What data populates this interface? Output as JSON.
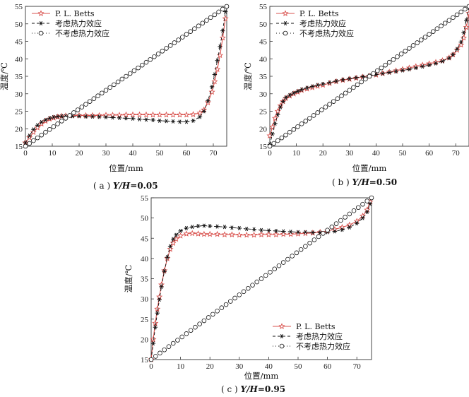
{
  "chart_data": [
    {
      "type": "line",
      "caption": "( a ) Y/H=0.05",
      "caption_prefix": "( a ) ",
      "caption_var": "Y/H",
      "caption_value": "=0.05",
      "xlabel": "位置/mm",
      "ylabel": "温度/℃",
      "xlim": [
        0,
        75
      ],
      "ylim": [
        15,
        55
      ],
      "xticks": [
        0,
        10,
        20,
        30,
        40,
        50,
        60,
        70
      ],
      "yticks": [
        15,
        20,
        25,
        30,
        35,
        40,
        45,
        50,
        55
      ],
      "legend_position": "top-left",
      "series": [
        {
          "name": "P. L. Betts",
          "marker": "star",
          "color": "#d9534f",
          "x": [
            0,
            1.5,
            3,
            4.5,
            6,
            7.5,
            9,
            10.5,
            12,
            13.5,
            15,
            17.5,
            20,
            22.5,
            25,
            27.5,
            30,
            32.5,
            35,
            37.5,
            40,
            42.5,
            45,
            47.5,
            50,
            52.5,
            55,
            57.5,
            60,
            62.5,
            65,
            66.5,
            68,
            69.5,
            70.5,
            71.5,
            72.5,
            73.5,
            74.5
          ],
          "y": [
            16,
            17.5,
            19,
            20.3,
            21.4,
            22.2,
            22.8,
            23.1,
            23.4,
            23.6,
            23.7,
            23.8,
            23.8,
            23.8,
            23.8,
            23.8,
            23.9,
            23.9,
            23.9,
            24,
            24,
            24,
            24,
            24,
            24,
            24,
            24,
            24,
            24,
            24.1,
            24.5,
            25.4,
            27.5,
            30.5,
            33.5,
            37,
            41,
            46,
            51.5
          ]
        },
        {
          "name": "考虑热力效应",
          "marker": "asterisk",
          "color": "#111111",
          "x": [
            0,
            1.5,
            3,
            4.5,
            6,
            7.5,
            9,
            10.5,
            12,
            13.5,
            15,
            17.5,
            20,
            22.5,
            25,
            27.5,
            30,
            32.5,
            35,
            37.5,
            40,
            42.5,
            45,
            47.5,
            50,
            52.5,
            55,
            57.5,
            60,
            62.5,
            65,
            66.5,
            68,
            69.5,
            70.5,
            71.5,
            72.5,
            73.5,
            74.5
          ],
          "y": [
            16,
            18,
            19.8,
            21,
            21.9,
            22.5,
            23,
            23.3,
            23.5,
            23.6,
            23.6,
            23.6,
            23.6,
            23.5,
            23.5,
            23.4,
            23.3,
            23.2,
            23.1,
            23,
            22.9,
            22.7,
            22.6,
            22.5,
            22.3,
            22.2,
            22.1,
            22,
            22,
            22.3,
            23.4,
            25,
            28,
            32,
            35.5,
            39.5,
            43.5,
            48,
            53.5
          ]
        },
        {
          "name": "不考虑热力效应",
          "marker": "circle",
          "color": "#111111",
          "x": [
            0,
            1.5,
            3,
            4.5,
            6,
            7.5,
            9,
            10.5,
            12,
            13.5,
            15,
            16.5,
            18,
            19.5,
            21,
            22.5,
            24,
            25.5,
            27,
            28.5,
            30,
            31.5,
            33,
            34.5,
            36,
            37.5,
            39,
            40.5,
            42,
            43.5,
            45,
            46.5,
            48,
            49.5,
            51,
            52.5,
            54,
            55.5,
            57,
            58.5,
            60,
            61.5,
            63,
            64.5,
            66,
            67.5,
            69,
            70.5,
            72,
            73.5,
            75
          ],
          "y": [
            15,
            15.8,
            16.6,
            17.4,
            18.2,
            19,
            19.8,
            20.6,
            21.4,
            22.2,
            23,
            23.8,
            24.6,
            25.4,
            26.2,
            27,
            27.8,
            28.6,
            29.4,
            30.2,
            31,
            31.8,
            32.6,
            33.4,
            34.2,
            35,
            35.8,
            36.6,
            37.4,
            38.2,
            39,
            39.8,
            40.6,
            41.4,
            42.2,
            43,
            43.8,
            44.6,
            45.4,
            46.2,
            47,
            47.8,
            48.6,
            49.4,
            50.2,
            51,
            51.8,
            52.6,
            53.4,
            54.2,
            55
          ]
        }
      ]
    },
    {
      "type": "line",
      "caption": "( b ) Y/H=0.50",
      "caption_prefix": "( b ) ",
      "caption_var": "Y/H",
      "caption_value": "=0.50",
      "xlabel": "位置/mm",
      "ylabel": "温度/℃",
      "xlim": [
        0,
        75
      ],
      "ylim": [
        15,
        55
      ],
      "xticks": [
        0,
        10,
        20,
        30,
        40,
        50,
        60,
        70
      ],
      "yticks": [
        15,
        20,
        25,
        30,
        35,
        40,
        45,
        50,
        55
      ],
      "legend_position": "top-left",
      "series": [
        {
          "name": "P. L. Betts",
          "marker": "star",
          "color": "#d9534f",
          "x": [
            0,
            1,
            2,
            3,
            4,
            5,
            6,
            7.5,
            9,
            10.5,
            12,
            14,
            16,
            18,
            20,
            22.5,
            25,
            27.5,
            30,
            32.5,
            35,
            37.5,
            40,
            42.5,
            45,
            47.5,
            50,
            52.5,
            55,
            57.5,
            60,
            62.5,
            65,
            67.5,
            69,
            70.5,
            72,
            73,
            74,
            75
          ],
          "y": [
            18,
            20.5,
            23,
            25,
            26.6,
            27.8,
            28.7,
            29.4,
            30,
            30.5,
            31,
            31.4,
            31.8,
            32.2,
            32.5,
            33,
            33.5,
            33.9,
            34.2,
            34.5,
            34.8,
            35.1,
            35.4,
            35.8,
            36.2,
            36.6,
            37,
            37.4,
            37.8,
            38.2,
            38.6,
            39,
            39.5,
            40.3,
            41.2,
            42.5,
            44,
            46,
            49,
            53
          ]
        },
        {
          "name": "考虑热力效应",
          "marker": "asterisk",
          "color": "#111111",
          "x": [
            0,
            1,
            2,
            3,
            4,
            5,
            6,
            7.5,
            9,
            10.5,
            12,
            14,
            16,
            18,
            20,
            22.5,
            25,
            27.5,
            30,
            32.5,
            35,
            37.5,
            40,
            42.5,
            45,
            47.5,
            50,
            52.5,
            55,
            57.5,
            60,
            62.5,
            65,
            67.5,
            69,
            70.5,
            72,
            73,
            74,
            75
          ],
          "y": [
            15.5,
            18.5,
            21.5,
            24,
            26.2,
            27.8,
            28.9,
            29.6,
            30.2,
            30.7,
            31.2,
            31.7,
            32.1,
            32.5,
            32.8,
            33.2,
            33.6,
            34,
            34.3,
            34.6,
            34.9,
            35.2,
            35.5,
            35.8,
            36.1,
            36.4,
            36.7,
            37,
            37.4,
            37.8,
            38.2,
            38.7,
            39.3,
            40.2,
            41.2,
            42.8,
            44.8,
            47.5,
            51,
            55
          ]
        },
        {
          "name": "不考虑热力效应",
          "marker": "circle",
          "color": "#111111",
          "x": [
            0,
            1.5,
            3,
            4.5,
            6,
            7.5,
            9,
            10.5,
            12,
            13.5,
            15,
            16.5,
            18,
            19.5,
            21,
            22.5,
            24,
            25.5,
            27,
            28.5,
            30,
            31.5,
            33,
            34.5,
            36,
            37.5,
            39,
            40.5,
            42,
            43.5,
            45,
            46.5,
            48,
            49.5,
            51,
            52.5,
            54,
            55.5,
            57,
            58.5,
            60,
            61.5,
            63,
            64.5,
            66,
            67.5,
            69,
            70.5,
            72,
            73.5,
            75
          ],
          "y": [
            15,
            15.8,
            16.6,
            17.4,
            18.2,
            19,
            19.8,
            20.6,
            21.4,
            22.2,
            23,
            23.8,
            24.6,
            25.4,
            26.2,
            27,
            27.8,
            28.6,
            29.4,
            30.2,
            31,
            31.8,
            32.6,
            33.4,
            34.2,
            35,
            35.8,
            36.6,
            37.4,
            38.2,
            39,
            39.8,
            40.6,
            41.4,
            42.2,
            43,
            43.8,
            44.6,
            45.4,
            46.2,
            47,
            47.8,
            48.6,
            49.4,
            50.2,
            51,
            51.8,
            52.6,
            53.4,
            54.2,
            55
          ]
        }
      ]
    },
    {
      "type": "line",
      "caption": "( c ) Y/H=0.95",
      "caption_prefix": "( c ) ",
      "caption_var": "Y/H",
      "caption_value": "=0.95",
      "xlabel": "位置/mm",
      "ylabel": "温度/℃",
      "xlim": [
        0,
        75
      ],
      "ylim": [
        15,
        55
      ],
      "xticks": [
        0,
        10,
        20,
        30,
        40,
        50,
        60,
        70
      ],
      "yticks": [
        15,
        20,
        25,
        30,
        35,
        40,
        45,
        50,
        55
      ],
      "legend_position": "bottom-right",
      "series": [
        {
          "name": "P. L. Betts",
          "marker": "star",
          "color": "#d9534f",
          "x": [
            0,
            0.7,
            1.4,
            2.1,
            2.8,
            3.5,
            4.5,
            5.5,
            6.5,
            7.5,
            8.5,
            10,
            12,
            14,
            16,
            18,
            20,
            22.5,
            25,
            27.5,
            30,
            32.5,
            35,
            37.5,
            40,
            42.5,
            45,
            47.5,
            50,
            52.5,
            55,
            57.5,
            60,
            62.5,
            65,
            67.5,
            70,
            72,
            73.5,
            74.5
          ],
          "y": [
            15,
            20,
            24,
            27.5,
            30.5,
            33.5,
            37,
            40,
            42.3,
            43.8,
            44.8,
            45.6,
            46.1,
            46.2,
            46.1,
            46,
            46,
            46,
            45.9,
            45.9,
            45.8,
            45.8,
            45.8,
            45.9,
            45.9,
            45.9,
            46,
            46,
            46.1,
            46.2,
            46.3,
            46.5,
            46.8,
            47.2,
            47.7,
            48.3,
            49.2,
            50.5,
            52,
            54
          ]
        },
        {
          "name": "考虑热力效应",
          "marker": "asterisk",
          "color": "#111111",
          "x": [
            0,
            0.7,
            1.4,
            2.1,
            2.8,
            3.5,
            4.5,
            5.5,
            6.5,
            7.5,
            8.5,
            10,
            12,
            14,
            16,
            18,
            20,
            22.5,
            25,
            27.5,
            30,
            32.5,
            35,
            37.5,
            40,
            42.5,
            45,
            47.5,
            50,
            52.5,
            55,
            57.5,
            60,
            62.5,
            65,
            67.5,
            70,
            72,
            73.5,
            74.5
          ],
          "y": [
            15,
            19,
            23,
            26.5,
            29.8,
            33,
            36.8,
            40.3,
            43,
            44.8,
            45.8,
            46.8,
            47.5,
            47.8,
            48,
            48.1,
            48,
            47.9,
            47.8,
            47.6,
            47.5,
            47.3,
            47.2,
            47,
            46.9,
            46.8,
            46.7,
            46.6,
            46.5,
            46.5,
            46.4,
            46.4,
            46.5,
            46.7,
            47.1,
            47.7,
            48.7,
            50,
            51.5,
            53.5
          ]
        },
        {
          "name": "不考虑热力效应",
          "marker": "circle",
          "color": "#111111",
          "x": [
            0,
            1.5,
            3,
            4.5,
            6,
            7.5,
            9,
            10.5,
            12,
            13.5,
            15,
            16.5,
            18,
            19.5,
            21,
            22.5,
            24,
            25.5,
            27,
            28.5,
            30,
            31.5,
            33,
            34.5,
            36,
            37.5,
            39,
            40.5,
            42,
            43.5,
            45,
            46.5,
            48,
            49.5,
            51,
            52.5,
            54,
            55.5,
            57,
            58.5,
            60,
            61.5,
            63,
            64.5,
            66,
            67.5,
            69,
            70.5,
            72,
            73.5,
            75
          ],
          "y": [
            15,
            15.8,
            16.6,
            17.4,
            18.2,
            19,
            19.8,
            20.6,
            21.4,
            22.2,
            23,
            23.8,
            24.6,
            25.4,
            26.2,
            27,
            27.8,
            28.6,
            29.4,
            30.2,
            31,
            31.8,
            32.6,
            33.4,
            34.2,
            35,
            35.8,
            36.6,
            37.4,
            38.2,
            39,
            39.8,
            40.6,
            41.4,
            42.2,
            43,
            43.8,
            44.6,
            45.4,
            46.2,
            47,
            47.8,
            48.6,
            49.4,
            50.2,
            51,
            51.8,
            52.6,
            53.4,
            54.2,
            55
          ]
        }
      ]
    }
  ]
}
